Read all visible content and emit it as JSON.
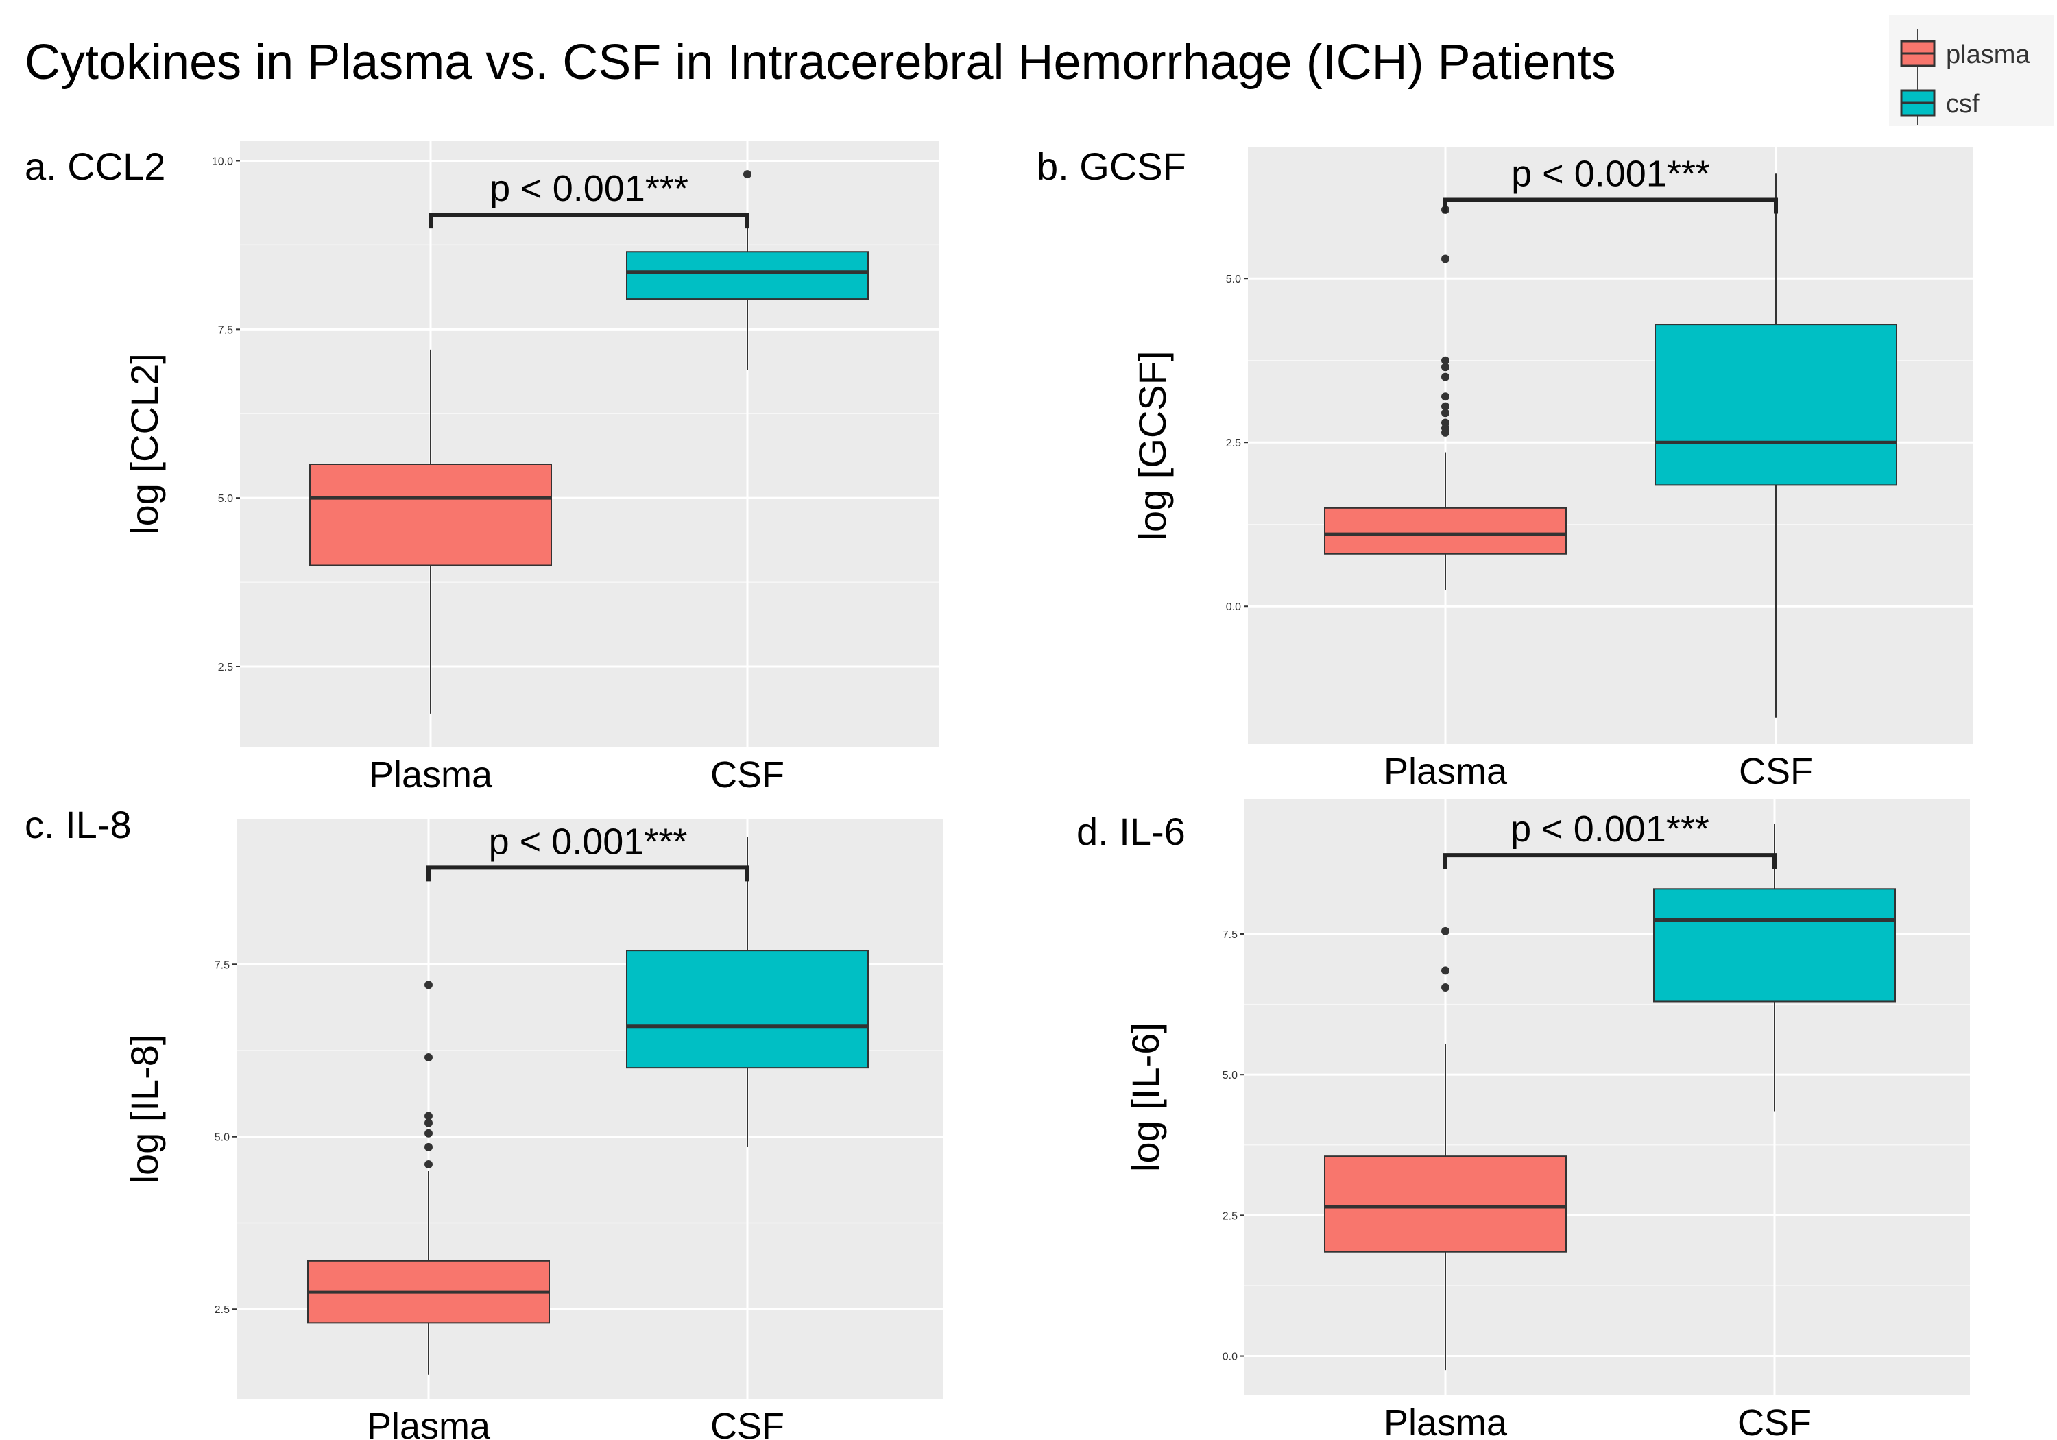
{
  "title": "Cytokines in Plasma vs. CSF in Intracerebral Hemorrhage (ICH) Patients",
  "legend": {
    "items": [
      {
        "label": "plasma",
        "color": "#F8766D"
      },
      {
        "label": "csf",
        "color": "#00BFC4"
      }
    ]
  },
  "chart_data": [
    {
      "type": "boxplot",
      "panel_label": "a. CCL2",
      "ylabel": "log [CCL2]",
      "ylim": [
        1.3,
        10.3
      ],
      "yticks": [
        2.5,
        5.0,
        7.5,
        10.0
      ],
      "ytick_labels": [
        "2.5",
        "5.0",
        "7.5",
        "10.0"
      ],
      "categories": [
        "Plasma",
        "CSF"
      ],
      "significance": "p < 0.001***",
      "bracket_y": 9.2,
      "groups": [
        {
          "name": "Plasma",
          "color": "#F8766D",
          "whisker_low": 1.8,
          "q1": 4.0,
          "median": 5.0,
          "q3": 5.5,
          "whisker_high": 7.2,
          "outliers": []
        },
        {
          "name": "CSF",
          "color": "#00BFC4",
          "whisker_low": 6.9,
          "q1": 7.95,
          "median": 8.35,
          "q3": 8.65,
          "whisker_high": 9.2,
          "outliers": [
            9.8
          ]
        }
      ]
    },
    {
      "type": "boxplot",
      "panel_label": "b. GCSF",
      "ylabel": "log [GCSF]",
      "ylim": [
        -2.1,
        7.0
      ],
      "yticks": [
        0.0,
        2.5,
        5.0
      ],
      "ytick_labels": [
        "0.0",
        "2.5",
        "5.0"
      ],
      "categories": [
        "Plasma",
        "CSF"
      ],
      "significance": "p < 0.001***",
      "bracket_y": 6.2,
      "groups": [
        {
          "name": "Plasma",
          "color": "#F8766D",
          "whisker_low": 0.25,
          "q1": 0.8,
          "median": 1.1,
          "q3": 1.5,
          "whisker_high": 2.35,
          "outliers": [
            2.65,
            2.72,
            2.8,
            2.95,
            3.05,
            3.2,
            3.5,
            3.65,
            3.75,
            5.3,
            6.05
          ]
        },
        {
          "name": "CSF",
          "color": "#00BFC4",
          "whisker_low": -1.7,
          "q1": 1.85,
          "median": 2.5,
          "q3": 4.3,
          "whisker_high": 6.6,
          "outliers": []
        }
      ]
    },
    {
      "type": "boxplot",
      "panel_label": "c. IL-8",
      "ylabel": "log [IL-8]",
      "ylim": [
        1.2,
        9.6
      ],
      "yticks": [
        2.5,
        5.0,
        7.5
      ],
      "ytick_labels": [
        "2.5",
        "5.0",
        "7.5"
      ],
      "categories": [
        "Plasma",
        "CSF"
      ],
      "significance": "p < 0.001***",
      "bracket_y": 8.9,
      "groups": [
        {
          "name": "Plasma",
          "color": "#F8766D",
          "whisker_low": 1.55,
          "q1": 2.3,
          "median": 2.75,
          "q3": 3.2,
          "whisker_high": 4.5,
          "outliers": [
            4.6,
            4.85,
            5.05,
            5.2,
            5.3,
            6.15,
            7.2
          ]
        },
        {
          "name": "CSF",
          "color": "#00BFC4",
          "whisker_low": 4.85,
          "q1": 6.0,
          "median": 6.6,
          "q3": 7.7,
          "whisker_high": 9.35,
          "outliers": []
        }
      ]
    },
    {
      "type": "boxplot",
      "panel_label": "d. IL-6",
      "ylabel": "log [IL-6]",
      "ylim": [
        -0.7,
        9.9
      ],
      "yticks": [
        0.0,
        2.5,
        5.0,
        7.5
      ],
      "ytick_labels": [
        "0.0",
        "2.5",
        "5.0",
        "7.5"
      ],
      "categories": [
        "Plasma",
        "CSF"
      ],
      "significance": "p < 0.001***",
      "bracket_y": 8.9,
      "groups": [
        {
          "name": "Plasma",
          "color": "#F8766D",
          "whisker_low": -0.25,
          "q1": 1.85,
          "median": 2.65,
          "q3": 3.55,
          "whisker_high": 5.55,
          "outliers": [
            6.55,
            6.85,
            7.55
          ]
        },
        {
          "name": "CSF",
          "color": "#00BFC4",
          "whisker_low": 4.35,
          "q1": 6.3,
          "median": 7.75,
          "q3": 8.3,
          "whisker_high": 9.45,
          "outliers": []
        }
      ]
    }
  ]
}
